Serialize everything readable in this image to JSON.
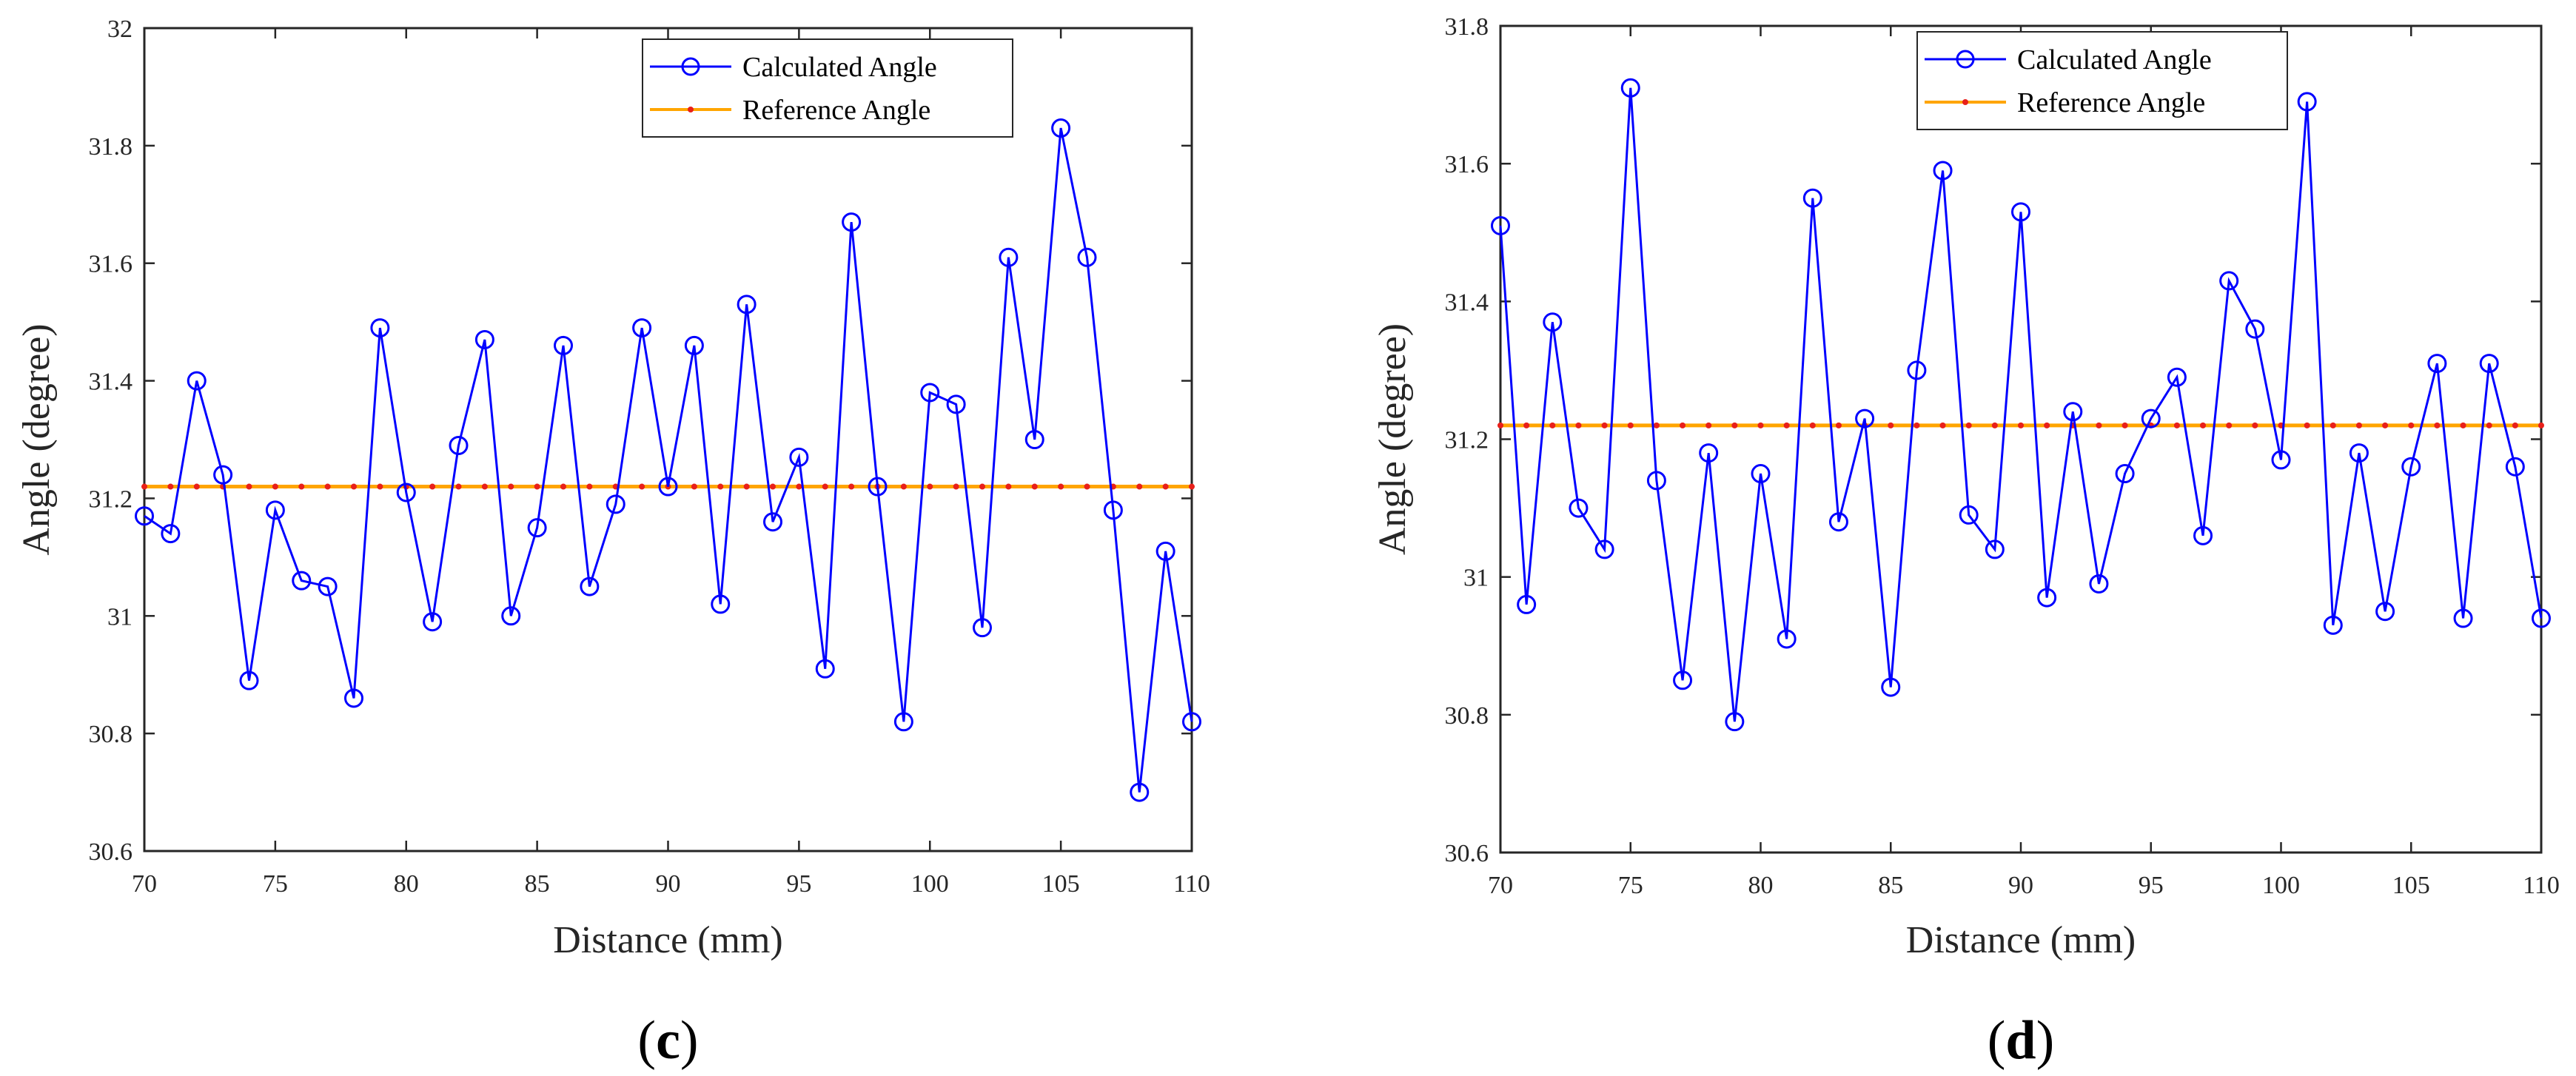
{
  "colors": {
    "calculated": "#0000ff",
    "reference": "#ffa500",
    "reference_marker": "#e8201a",
    "axis": "#262626"
  },
  "chart_data": [
    {
      "type": "line",
      "panel": "c",
      "panel_label": {
        "open": "(",
        "letter": "c",
        "close": ")"
      },
      "xlabel": "Distance (mm)",
      "ylabel": "Angle (degree)",
      "xlim": [
        70,
        110
      ],
      "ylim": [
        30.6,
        32
      ],
      "xticks": [
        70,
        75,
        80,
        85,
        90,
        95,
        100,
        105,
        110
      ],
      "yticks": [
        30.6,
        30.8,
        31,
        31.2,
        31.4,
        31.6,
        31.8,
        32
      ],
      "ytick_labels": [
        "30.6",
        "30.8",
        "31",
        "31.2",
        "31.4",
        "31.6",
        "31.8",
        "32"
      ],
      "grid": false,
      "legend_position": "top-right",
      "x": [
        70,
        71,
        72,
        73,
        74,
        75,
        76,
        77,
        78,
        79,
        80,
        81,
        82,
        83,
        84,
        85,
        86,
        87,
        88,
        89,
        90,
        91,
        92,
        93,
        94,
        95,
        96,
        97,
        98,
        99,
        100,
        101,
        102,
        103,
        104,
        105,
        106,
        107,
        108,
        109,
        110
      ],
      "series": [
        {
          "name": "Calculated Angle",
          "marker": "circle",
          "values": [
            31.17,
            31.14,
            31.4,
            31.24,
            30.89,
            31.18,
            31.06,
            31.05,
            30.86,
            31.49,
            31.21,
            30.99,
            31.29,
            31.47,
            31.0,
            31.15,
            31.46,
            31.05,
            31.19,
            31.49,
            31.22,
            31.46,
            31.02,
            31.53,
            31.16,
            31.27,
            30.91,
            31.67,
            31.22,
            30.82,
            31.38,
            31.36,
            30.98,
            31.61,
            31.3,
            31.83,
            31.61,
            31.18,
            30.7,
            31.11,
            30.82
          ]
        },
        {
          "name": "Reference Angle",
          "marker": "dot",
          "values": [
            31.22,
            31.22,
            31.22,
            31.22,
            31.22,
            31.22,
            31.22,
            31.22,
            31.22,
            31.22,
            31.22,
            31.22,
            31.22,
            31.22,
            31.22,
            31.22,
            31.22,
            31.22,
            31.22,
            31.22,
            31.22,
            31.22,
            31.22,
            31.22,
            31.22,
            31.22,
            31.22,
            31.22,
            31.22,
            31.22,
            31.22,
            31.22,
            31.22,
            31.22,
            31.22,
            31.22,
            31.22,
            31.22,
            31.22,
            31.22,
            31.22
          ]
        }
      ]
    },
    {
      "type": "line",
      "panel": "d",
      "panel_label": {
        "open": "(",
        "letter": "d",
        "close": ")"
      },
      "xlabel": "Distance (mm)",
      "ylabel": "Angle (degree)",
      "xlim": [
        70,
        110
      ],
      "ylim": [
        30.6,
        31.8
      ],
      "xticks": [
        70,
        75,
        80,
        85,
        90,
        95,
        100,
        105,
        110
      ],
      "yticks": [
        30.6,
        30.8,
        31,
        31.2,
        31.4,
        31.6,
        31.8
      ],
      "ytick_labels": [
        "30.6",
        "30.8",
        "31",
        "31.2",
        "31.4",
        "31.6",
        "31.8"
      ],
      "grid": false,
      "legend_position": "top-center",
      "x": [
        70,
        71,
        72,
        73,
        74,
        75,
        76,
        77,
        78,
        79,
        80,
        81,
        82,
        83,
        84,
        85,
        86,
        87,
        88,
        89,
        90,
        91,
        92,
        93,
        94,
        95,
        96,
        97,
        98,
        99,
        100,
        101,
        102,
        103,
        104,
        105,
        106,
        107,
        108,
        109,
        110
      ],
      "series": [
        {
          "name": "Calculated Angle",
          "marker": "circle",
          "values": [
            31.51,
            30.96,
            31.37,
            31.1,
            31.04,
            31.71,
            31.14,
            30.85,
            31.18,
            30.79,
            31.15,
            30.91,
            31.55,
            31.08,
            31.23,
            30.84,
            31.3,
            31.59,
            31.09,
            31.04,
            31.53,
            30.97,
            31.24,
            30.99,
            31.15,
            31.23,
            31.29,
            31.06,
            31.43,
            31.36,
            31.17,
            31.69,
            30.93,
            31.18,
            30.95,
            31.16,
            31.31,
            30.94,
            31.31,
            31.16,
            30.94
          ]
        },
        {
          "name": "Reference Angle",
          "marker": "dot",
          "values": [
            31.22,
            31.22,
            31.22,
            31.22,
            31.22,
            31.22,
            31.22,
            31.22,
            31.22,
            31.22,
            31.22,
            31.22,
            31.22,
            31.22,
            31.22,
            31.22,
            31.22,
            31.22,
            31.22,
            31.22,
            31.22,
            31.22,
            31.22,
            31.22,
            31.22,
            31.22,
            31.22,
            31.22,
            31.22,
            31.22,
            31.22,
            31.22,
            31.22,
            31.22,
            31.22,
            31.22,
            31.22,
            31.22,
            31.22,
            31.22,
            31.22
          ]
        }
      ]
    }
  ]
}
